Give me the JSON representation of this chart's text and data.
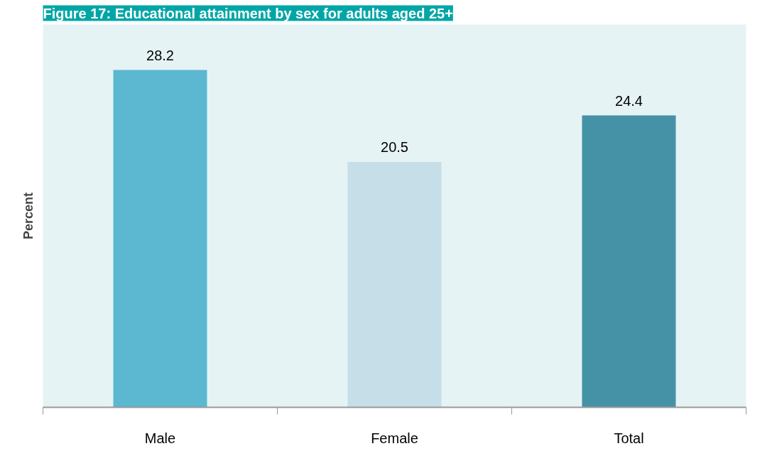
{
  "chart_data": {
    "type": "bar",
    "title": "Figure 17: Educational attainment by sex for adults aged 25+",
    "ylabel": "Percent",
    "categories": [
      "Male",
      "Female",
      "Total"
    ],
    "values": [
      28.2,
      20.5,
      24.4
    ],
    "colors": [
      "#5bb8d0",
      "#c5dee8",
      "#4592a6"
    ],
    "ylim": [
      0,
      32
    ],
    "data_labels": true,
    "grid": false
  }
}
